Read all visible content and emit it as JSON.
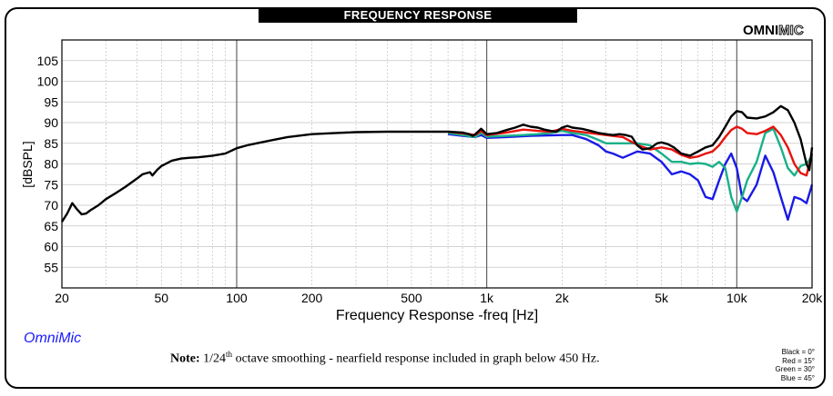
{
  "header": {
    "title": "FREQUENCY RESPONSE",
    "brand_left": "OMNI",
    "brand_right": "MIC"
  },
  "footer": {
    "app_name": "OmniMic",
    "note_label": "Note:",
    "note_pre": "1/24",
    "note_sup": "th",
    "note_post": "octave smoothing - nearfield response included in graph below 450 Hz.",
    "legend": [
      "Black = 0°",
      "Red = 15°",
      "Green = 30°",
      "Blue = 45°"
    ]
  },
  "colors": {
    "black": "#000000",
    "red": "#e8120c",
    "green": "#19b088",
    "blue": "#1a1ae6"
  },
  "chart_data": {
    "type": "line",
    "xlabel": "Frequency Response -freq [Hz]",
    "ylabel": "[dBSPL]",
    "xscale": "log",
    "xlim": [
      20,
      20000
    ],
    "ylim": [
      50,
      110
    ],
    "x_ticks": [
      20,
      50,
      100,
      200,
      500,
      1000,
      2000,
      5000,
      10000,
      20000
    ],
    "x_tick_labels": [
      "20",
      "50",
      "100",
      "200",
      "500",
      "1k",
      "2k",
      "5k",
      "10k",
      "20k"
    ],
    "y_ticks": [
      55,
      60,
      65,
      70,
      75,
      80,
      85,
      90,
      95,
      100,
      105
    ],
    "grid": true,
    "series": [
      {
        "name": "Black = 0°",
        "color": "#000000",
        "points": [
          [
            20,
            66
          ],
          [
            21,
            68
          ],
          [
            22,
            70.5
          ],
          [
            23,
            69
          ],
          [
            24,
            67.8
          ],
          [
            25,
            68
          ],
          [
            26,
            68.8
          ],
          [
            28,
            70
          ],
          [
            30,
            71.5
          ],
          [
            33,
            73
          ],
          [
            36,
            74.5
          ],
          [
            40,
            76.5
          ],
          [
            42,
            77.5
          ],
          [
            45,
            78
          ],
          [
            46,
            77.2
          ],
          [
            48,
            78.5
          ],
          [
            50,
            79.5
          ],
          [
            55,
            80.8
          ],
          [
            60,
            81.3
          ],
          [
            65,
            81.5
          ],
          [
            70,
            81.6
          ],
          [
            75,
            81.8
          ],
          [
            80,
            82
          ],
          [
            90,
            82.5
          ],
          [
            100,
            83.8
          ],
          [
            110,
            84.5
          ],
          [
            120,
            85
          ],
          [
            140,
            85.8
          ],
          [
            160,
            86.5
          ],
          [
            200,
            87.2
          ],
          [
            250,
            87.5
          ],
          [
            300,
            87.7
          ],
          [
            400,
            87.8
          ],
          [
            500,
            87.8
          ],
          [
            600,
            87.8
          ],
          [
            700,
            87.8
          ],
          [
            800,
            87.6
          ],
          [
            850,
            87.2
          ],
          [
            880,
            86.8
          ],
          [
            900,
            87.2
          ],
          [
            950,
            88.5
          ],
          [
            1000,
            87.2
          ],
          [
            1100,
            87.5
          ],
          [
            1200,
            88.2
          ],
          [
            1300,
            88.8
          ],
          [
            1400,
            89.5
          ],
          [
            1500,
            89
          ],
          [
            1600,
            88.8
          ],
          [
            1700,
            88.3
          ],
          [
            1800,
            88
          ],
          [
            1900,
            87.8
          ],
          [
            2000,
            88.8
          ],
          [
            2100,
            89.2
          ],
          [
            2200,
            88.8
          ],
          [
            2400,
            88.5
          ],
          [
            2600,
            88
          ],
          [
            2800,
            87.5
          ],
          [
            3000,
            87.2
          ],
          [
            3200,
            87
          ],
          [
            3400,
            87.2
          ],
          [
            3600,
            87
          ],
          [
            3800,
            86.6
          ],
          [
            4000,
            84.5
          ],
          [
            4200,
            83.5
          ],
          [
            4500,
            83.8
          ],
          [
            4800,
            85
          ],
          [
            5000,
            85.2
          ],
          [
            5300,
            84.8
          ],
          [
            5600,
            84
          ],
          [
            6000,
            82.5
          ],
          [
            6500,
            82
          ],
          [
            7000,
            83
          ],
          [
            7500,
            84
          ],
          [
            8000,
            84.5
          ],
          [
            8500,
            86.5
          ],
          [
            9000,
            89
          ],
          [
            9500,
            91.5
          ],
          [
            10000,
            92.8
          ],
          [
            10500,
            92.5
          ],
          [
            11000,
            91.2
          ],
          [
            12000,
            91
          ],
          [
            13000,
            91.5
          ],
          [
            14000,
            92.5
          ],
          [
            15000,
            94
          ],
          [
            16000,
            93
          ],
          [
            17000,
            90
          ],
          [
            18000,
            86
          ],
          [
            19000,
            80
          ],
          [
            19500,
            78.5
          ],
          [
            20000,
            84
          ]
        ]
      },
      {
        "name": "Red = 15°",
        "color": "#e8120c",
        "points": [
          [
            700,
            87.8
          ],
          [
            800,
            87.4
          ],
          [
            850,
            87.2
          ],
          [
            900,
            87
          ],
          [
            950,
            88
          ],
          [
            1000,
            87
          ],
          [
            1200,
            87.6
          ],
          [
            1400,
            88.3
          ],
          [
            1600,
            88
          ],
          [
            1800,
            87.8
          ],
          [
            2000,
            88.5
          ],
          [
            2200,
            88
          ],
          [
            2500,
            87.6
          ],
          [
            3000,
            87
          ],
          [
            3500,
            86.5
          ],
          [
            4000,
            84.6
          ],
          [
            4500,
            83.5
          ],
          [
            5000,
            84
          ],
          [
            5500,
            83.5
          ],
          [
            6000,
            82.2
          ],
          [
            6500,
            81.5
          ],
          [
            7000,
            81.8
          ],
          [
            7500,
            82.5
          ],
          [
            8000,
            83
          ],
          [
            8500,
            84.5
          ],
          [
            9000,
            86.5
          ],
          [
            9500,
            88.2
          ],
          [
            10000,
            89
          ],
          [
            10500,
            88.5
          ],
          [
            11000,
            87.5
          ],
          [
            12000,
            87.2
          ],
          [
            13000,
            88
          ],
          [
            14000,
            89
          ],
          [
            15000,
            87
          ],
          [
            16000,
            84
          ],
          [
            17000,
            80
          ],
          [
            18000,
            77.8
          ],
          [
            19000,
            77.2
          ],
          [
            20000,
            82.5
          ]
        ]
      },
      {
        "name": "Green = 30°",
        "color": "#19b088",
        "points": [
          [
            700,
            87.5
          ],
          [
            800,
            87
          ],
          [
            900,
            86.5
          ],
          [
            950,
            87.5
          ],
          [
            1000,
            86.6
          ],
          [
            1200,
            86.8
          ],
          [
            1400,
            87
          ],
          [
            1600,
            87.2
          ],
          [
            1800,
            87.5
          ],
          [
            2000,
            88
          ],
          [
            2200,
            87.5
          ],
          [
            2500,
            87
          ],
          [
            2800,
            85.8
          ],
          [
            3000,
            85
          ],
          [
            3500,
            85
          ],
          [
            4000,
            85
          ],
          [
            4500,
            84.5
          ],
          [
            5000,
            82.5
          ],
          [
            5500,
            80.5
          ],
          [
            6000,
            80.5
          ],
          [
            6500,
            80
          ],
          [
            7000,
            80.2
          ],
          [
            7500,
            80
          ],
          [
            8000,
            79.3
          ],
          [
            8500,
            80.5
          ],
          [
            9000,
            79
          ],
          [
            9500,
            72
          ],
          [
            10000,
            68.5
          ],
          [
            10500,
            72
          ],
          [
            11000,
            76
          ],
          [
            12000,
            80.5
          ],
          [
            13000,
            87.5
          ],
          [
            14000,
            88.5
          ],
          [
            15000,
            84
          ],
          [
            16000,
            79
          ],
          [
            17000,
            77.2
          ],
          [
            18000,
            79.5
          ],
          [
            19000,
            80
          ],
          [
            20000,
            82
          ]
        ]
      },
      {
        "name": "Blue = 45°",
        "color": "#1a1ae6",
        "points": [
          [
            700,
            87.2
          ],
          [
            800,
            86.8
          ],
          [
            900,
            86.5
          ],
          [
            950,
            87
          ],
          [
            1000,
            86.3
          ],
          [
            1200,
            86.5
          ],
          [
            1500,
            86.8
          ],
          [
            2000,
            87
          ],
          [
            2200,
            87
          ],
          [
            2500,
            86
          ],
          [
            2800,
            84.5
          ],
          [
            3000,
            83
          ],
          [
            3200,
            82.5
          ],
          [
            3500,
            81.5
          ],
          [
            4000,
            83
          ],
          [
            4500,
            82.5
          ],
          [
            5000,
            80.5
          ],
          [
            5500,
            77.5
          ],
          [
            6000,
            78.2
          ],
          [
            6500,
            77.5
          ],
          [
            7000,
            76
          ],
          [
            7500,
            72
          ],
          [
            8000,
            71.5
          ],
          [
            8500,
            76
          ],
          [
            9000,
            80
          ],
          [
            9500,
            82.5
          ],
          [
            10000,
            79
          ],
          [
            10500,
            72
          ],
          [
            11000,
            71
          ],
          [
            12000,
            75
          ],
          [
            13000,
            82
          ],
          [
            14000,
            78
          ],
          [
            15000,
            72
          ],
          [
            16000,
            66.5
          ],
          [
            17000,
            72
          ],
          [
            18000,
            71.5
          ],
          [
            19000,
            70.5
          ],
          [
            20000,
            75
          ]
        ]
      }
    ]
  }
}
